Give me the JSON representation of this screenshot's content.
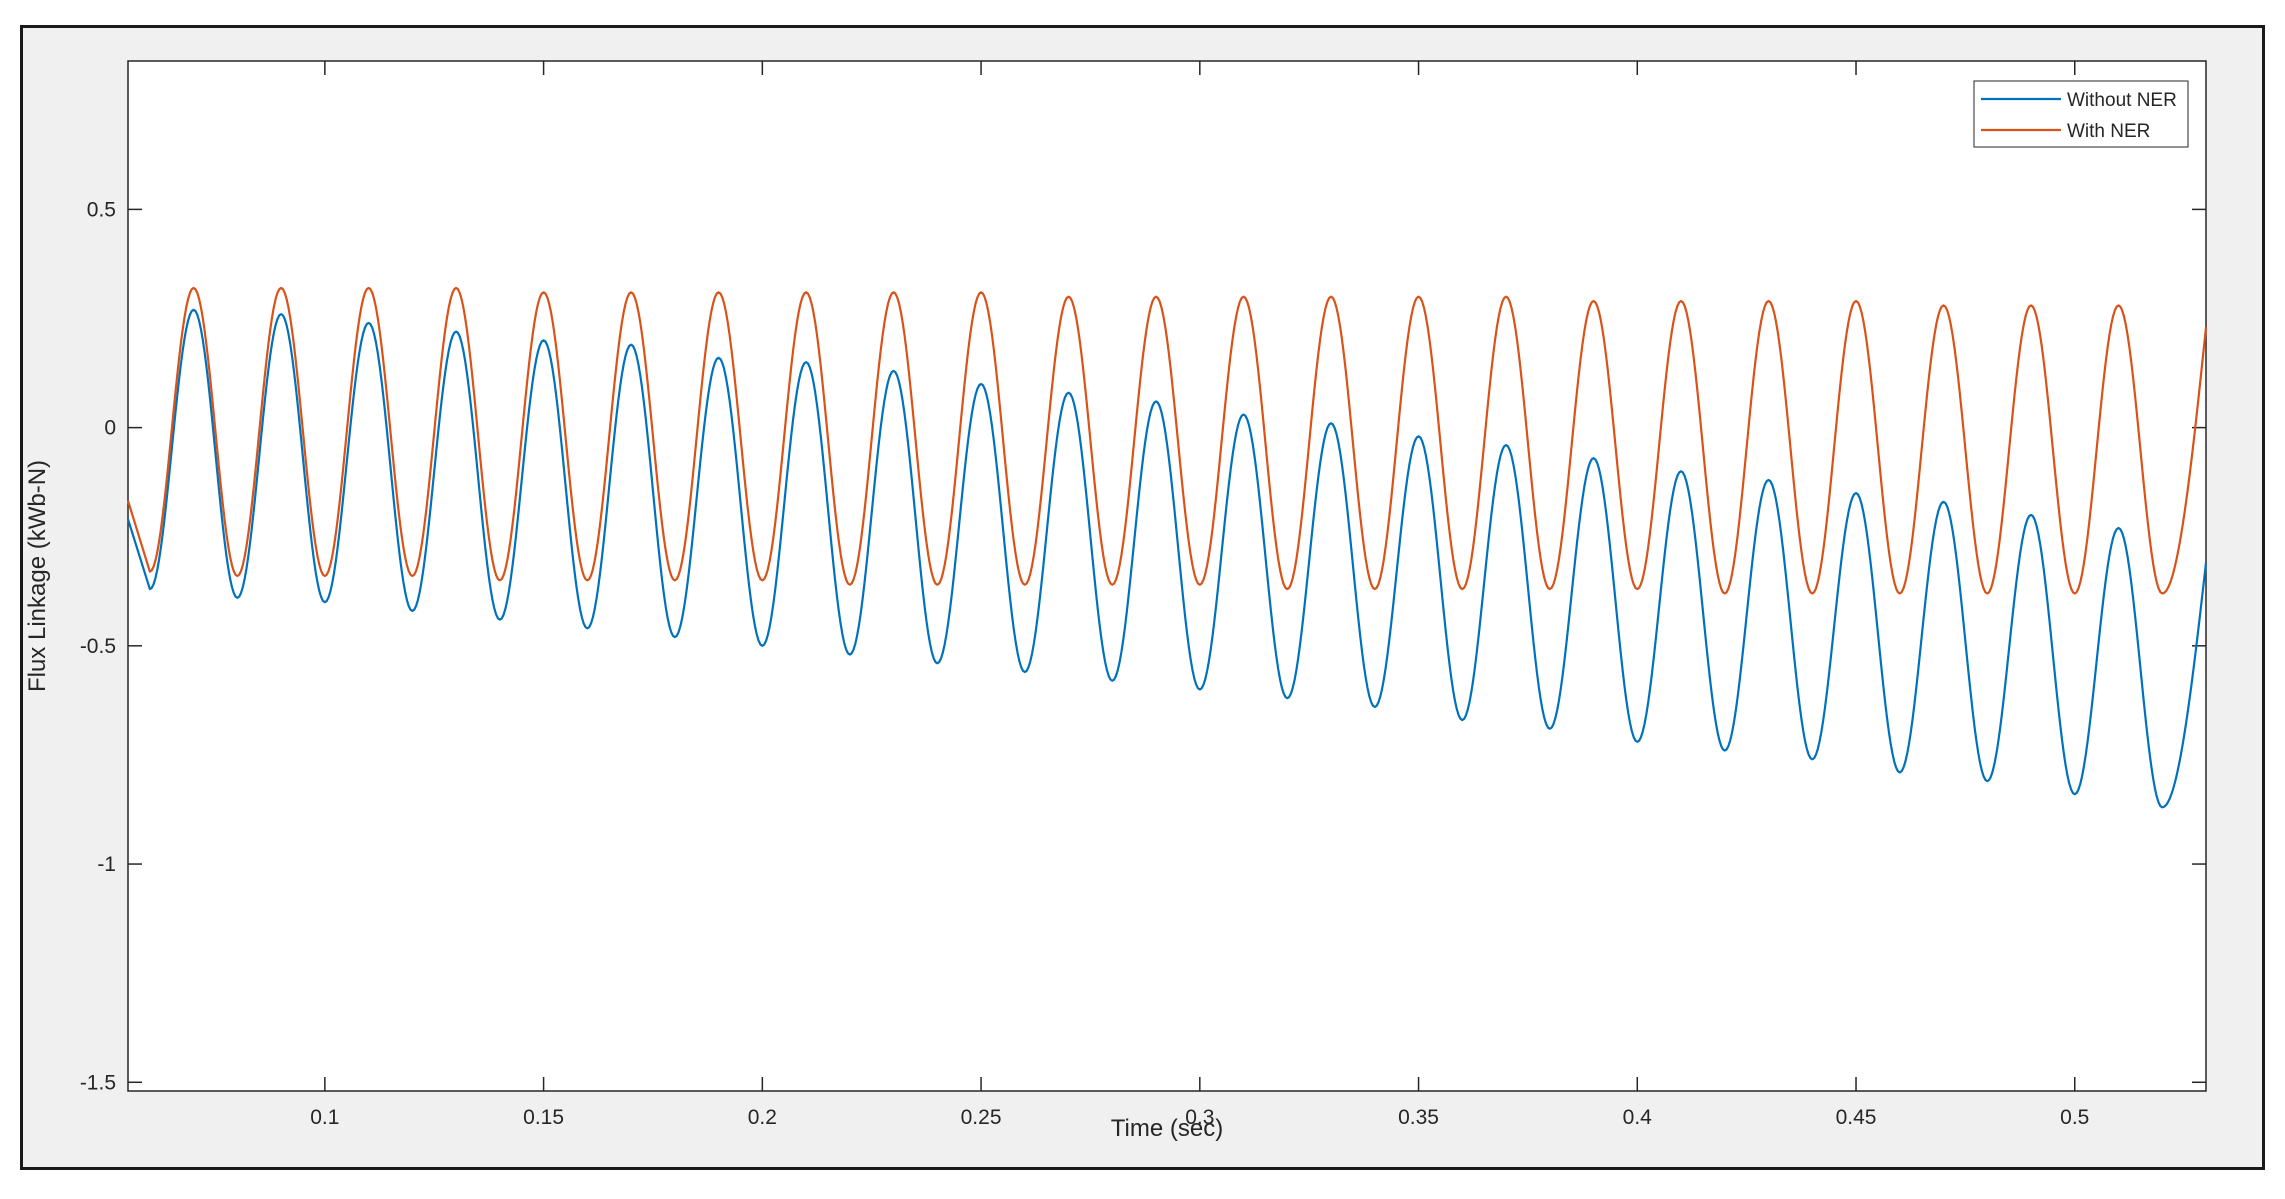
{
  "chart_data": {
    "type": "line",
    "title": "",
    "xlabel": "Time (sec)",
    "ylabel": "Flux Linkage (kWb-N)",
    "xlim": [
      0.055,
      0.53
    ],
    "ylim": [
      -1.52,
      0.84
    ],
    "xticks": [
      0.1,
      0.15,
      0.2,
      0.25,
      0.3,
      0.35,
      0.4,
      0.45,
      0.5
    ],
    "xtick_labels": [
      "0.1",
      "0.15",
      "0.2",
      "0.25",
      "0.3",
      "0.35",
      "0.4",
      "0.45",
      "0.5"
    ],
    "yticks": [
      0.5,
      0,
      -0.5,
      -1,
      -1.5
    ],
    "ytick_labels": [
      "0.5",
      "0",
      "-0.5",
      "-1",
      "-1.5"
    ],
    "grid": false,
    "legend_position": "top-right",
    "signal_frequency_hz": 50,
    "series": [
      {
        "name": "Without NER",
        "color": "#0072bd",
        "description": "sinusoid with decaying offset",
        "peaks": [
          [
            0.07,
            0.27
          ],
          [
            0.09,
            0.26
          ],
          [
            0.11,
            0.24
          ],
          [
            0.13,
            0.22
          ],
          [
            0.15,
            0.2
          ],
          [
            0.17,
            0.19
          ],
          [
            0.19,
            0.16
          ],
          [
            0.21,
            0.15
          ],
          [
            0.23,
            0.13
          ],
          [
            0.25,
            0.1
          ],
          [
            0.27,
            0.08
          ],
          [
            0.29,
            0.06
          ],
          [
            0.31,
            0.03
          ],
          [
            0.33,
            0.01
          ],
          [
            0.35,
            -0.02
          ],
          [
            0.37,
            -0.04
          ],
          [
            0.39,
            -0.07
          ],
          [
            0.41,
            -0.1
          ],
          [
            0.43,
            -0.12
          ],
          [
            0.45,
            -0.15
          ],
          [
            0.47,
            -0.17
          ],
          [
            0.49,
            -0.2
          ],
          [
            0.51,
            -0.23
          ]
        ],
        "troughs": [
          [
            0.06,
            -0.37
          ],
          [
            0.08,
            -0.39
          ],
          [
            0.1,
            -0.4
          ],
          [
            0.12,
            -0.42
          ],
          [
            0.14,
            -0.44
          ],
          [
            0.16,
            -0.46
          ],
          [
            0.18,
            -0.48
          ],
          [
            0.2,
            -0.5
          ],
          [
            0.22,
            -0.52
          ],
          [
            0.24,
            -0.54
          ],
          [
            0.26,
            -0.56
          ],
          [
            0.28,
            -0.58
          ],
          [
            0.3,
            -0.6
          ],
          [
            0.32,
            -0.62
          ],
          [
            0.34,
            -0.64
          ],
          [
            0.36,
            -0.67
          ],
          [
            0.38,
            -0.69
          ],
          [
            0.4,
            -0.72
          ],
          [
            0.42,
            -0.74
          ],
          [
            0.44,
            -0.76
          ],
          [
            0.46,
            -0.79
          ],
          [
            0.48,
            -0.81
          ],
          [
            0.5,
            -0.84
          ],
          [
            0.52,
            -0.87
          ]
        ],
        "end_value": -0.31
      },
      {
        "name": "With NER",
        "color": "#d95319",
        "peaks": [
          [
            0.07,
            0.32
          ],
          [
            0.09,
            0.32
          ],
          [
            0.11,
            0.32
          ],
          [
            0.13,
            0.32
          ],
          [
            0.15,
            0.31
          ],
          [
            0.17,
            0.31
          ],
          [
            0.19,
            0.31
          ],
          [
            0.21,
            0.31
          ],
          [
            0.23,
            0.31
          ],
          [
            0.25,
            0.31
          ],
          [
            0.27,
            0.3
          ],
          [
            0.29,
            0.3
          ],
          [
            0.31,
            0.3
          ],
          [
            0.33,
            0.3
          ],
          [
            0.35,
            0.3
          ],
          [
            0.37,
            0.3
          ],
          [
            0.39,
            0.29
          ],
          [
            0.41,
            0.29
          ],
          [
            0.43,
            0.29
          ],
          [
            0.45,
            0.29
          ],
          [
            0.47,
            0.28
          ],
          [
            0.49,
            0.28
          ],
          [
            0.51,
            0.28
          ]
        ],
        "troughs": [
          [
            0.06,
            -0.33
          ],
          [
            0.08,
            -0.34
          ],
          [
            0.1,
            -0.34
          ],
          [
            0.12,
            -0.34
          ],
          [
            0.14,
            -0.35
          ],
          [
            0.16,
            -0.35
          ],
          [
            0.18,
            -0.35
          ],
          [
            0.2,
            -0.35
          ],
          [
            0.22,
            -0.36
          ],
          [
            0.24,
            -0.36
          ],
          [
            0.26,
            -0.36
          ],
          [
            0.28,
            -0.36
          ],
          [
            0.3,
            -0.36
          ],
          [
            0.32,
            -0.37
          ],
          [
            0.34,
            -0.37
          ],
          [
            0.36,
            -0.37
          ],
          [
            0.38,
            -0.37
          ],
          [
            0.4,
            -0.37
          ],
          [
            0.42,
            -0.38
          ],
          [
            0.44,
            -0.38
          ],
          [
            0.46,
            -0.38
          ],
          [
            0.48,
            -0.38
          ],
          [
            0.5,
            -0.38
          ],
          [
            0.52,
            -0.38
          ]
        ],
        "end_value": 0.23
      }
    ]
  }
}
